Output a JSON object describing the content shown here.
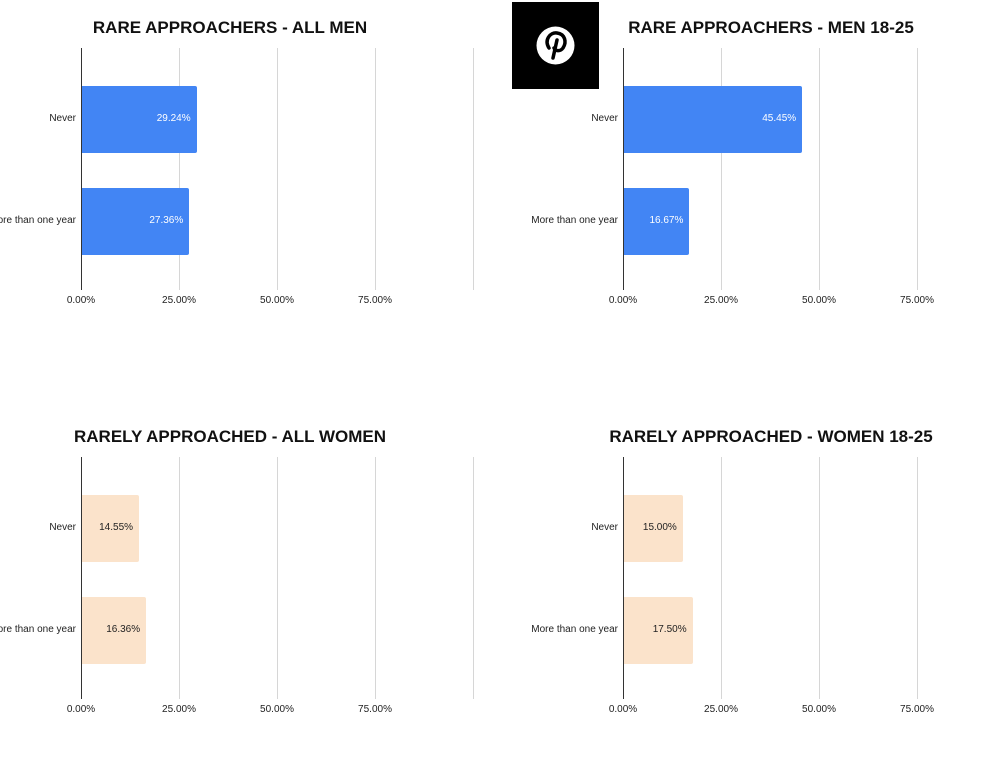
{
  "logo": {
    "name": "pinterest-logo-icon",
    "color": "#000000"
  },
  "chart_data": [
    {
      "type": "bar",
      "orientation": "horizontal",
      "title": "RARE APPROACHERS - ALL MEN",
      "categories": [
        "Never",
        "More than one year"
      ],
      "values": [
        29.24,
        27.36
      ],
      "data_labels": [
        "29.24%",
        "27.36%"
      ],
      "xlim": [
        0,
        100
      ],
      "xticks": [
        "0.00%",
        "25.00%",
        "50.00%",
        "75.00%"
      ],
      "grid": true,
      "color": "#4285f4",
      "label_color": "#ffffff"
    },
    {
      "type": "bar",
      "orientation": "horizontal",
      "title": "RARE APPROACHERS - MEN 18-25",
      "categories": [
        "Never",
        "More than one year"
      ],
      "values": [
        45.45,
        16.67
      ],
      "data_labels": [
        "45.45%",
        "16.67%"
      ],
      "xlim": [
        0,
        100
      ],
      "xticks": [
        "0.00%",
        "25.00%",
        "50.00%",
        "75.00%"
      ],
      "grid": true,
      "color": "#4285f4",
      "label_color": "#ffffff"
    },
    {
      "type": "bar",
      "orientation": "horizontal",
      "title": "RARELY APPROACHED - ALL WOMEN",
      "categories": [
        "Never",
        "More than one year"
      ],
      "values": [
        14.55,
        16.36
      ],
      "data_labels": [
        "14.55%",
        "16.36%"
      ],
      "xlim": [
        0,
        100
      ],
      "xticks": [
        "0.00%",
        "25.00%",
        "50.00%",
        "75.00%"
      ],
      "grid": true,
      "color": "#fbe3cb",
      "label_color": "#222222"
    },
    {
      "type": "bar",
      "orientation": "horizontal",
      "title": "RARELY APPROACHED - WOMEN 18-25",
      "categories": [
        "Never",
        "More than one year"
      ],
      "values": [
        15.0,
        17.5
      ],
      "data_labels": [
        "15.00%",
        "17.50%"
      ],
      "xlim": [
        0,
        100
      ],
      "xticks": [
        "0.00%",
        "25.00%",
        "50.00%",
        "75.00%"
      ],
      "grid": true,
      "color": "#fbe3cb",
      "label_color": "#222222"
    }
  ]
}
